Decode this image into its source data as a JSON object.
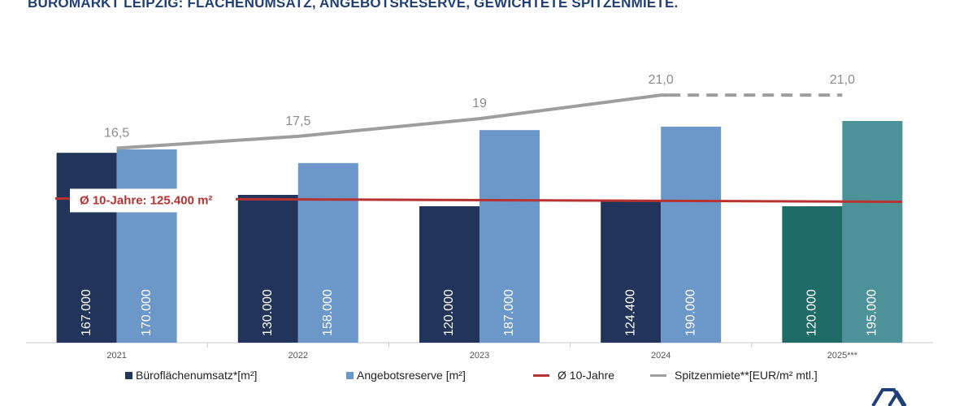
{
  "chart_data": {
    "type": "bar",
    "title": "BÜROMARKT LEIPZIG: FLÄCHENUMSATZ, ANGEBOTSRESERVE, GEWICHTETE SPITZENMIETE.",
    "categories": [
      "2021",
      "2022",
      "2023",
      "2024",
      "2025***"
    ],
    "series": [
      {
        "name": "Büroflächenumsatz*[m²]",
        "values": [
          167000,
          130000,
          120000,
          124400,
          120000
        ],
        "labels": [
          "167.000",
          "130.000",
          "120.000",
          "124.400",
          "120.000"
        ],
        "color": "#22345a",
        "highlight_color": "#1e6b68"
      },
      {
        "name": "Angebotsreserve [m²]",
        "values": [
          170000,
          158000,
          187000,
          190000,
          195000
        ],
        "labels": [
          "170.000",
          "158.000",
          "187.000",
          "190.000",
          "195.000"
        ],
        "color": "#6b97c9",
        "highlight_color": "#4e9299"
      }
    ],
    "average": {
      "name": "Ø 10-Jahre",
      "label": "Ø 10-Jahre: 125.400 m²",
      "value": 125400,
      "color": "#b83232"
    },
    "rent": {
      "name": "Spitzenmiete**[EUR/m² mtl.]",
      "values": [
        16.5,
        17.5,
        19,
        21.0,
        21.0
      ],
      "labels": [
        "16,5",
        "17,5",
        "19",
        "21,0",
        "21,0"
      ],
      "color": "#9e9e9e",
      "projected_from_index": 3
    },
    "ylim_bars": [
      0,
      280000
    ],
    "ylim_rent": [
      0,
      27
    ]
  }
}
